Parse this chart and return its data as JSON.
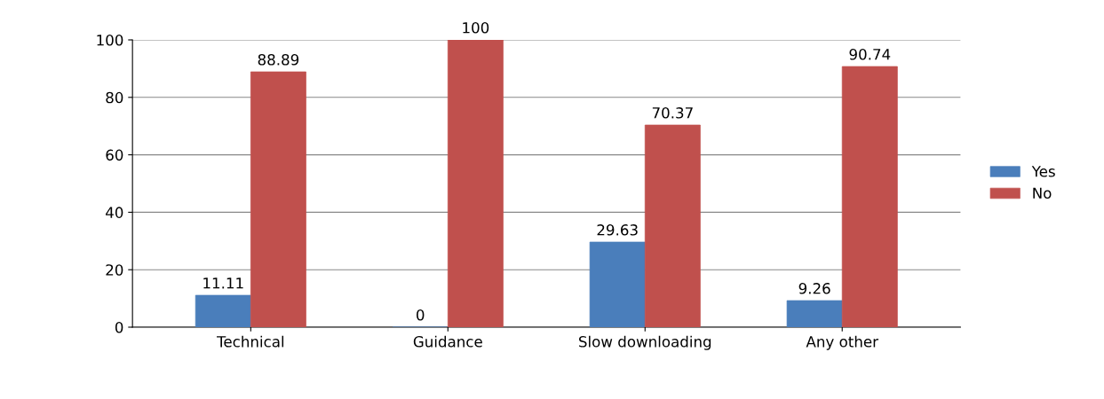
{
  "chart_data": {
    "type": "bar",
    "categories": [
      "Technical",
      "Guidance",
      "Slow downloading",
      "Any other"
    ],
    "series": [
      {
        "name": "Yes",
        "color": "#4a7ebb",
        "values": [
          11.11,
          0,
          29.63,
          9.26
        ]
      },
      {
        "name": "No",
        "color": "#c0504d",
        "values": [
          88.89,
          100,
          70.37,
          90.74
        ]
      }
    ],
    "ylim": [
      0,
      100
    ],
    "yticks": [
      0,
      20,
      40,
      60,
      80,
      100
    ],
    "grid": "y",
    "legend": "right",
    "data_labels": true
  }
}
